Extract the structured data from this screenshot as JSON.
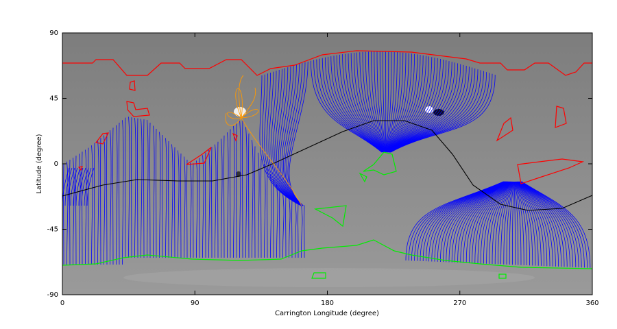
{
  "chart_data": {
    "type": "image",
    "xlabel": "Carrington Longitude (degree)",
    "ylabel": "Latitude (degree)",
    "xlim": [
      0,
      360
    ],
    "ylim": [
      -90,
      90
    ],
    "xticks": [
      0,
      90,
      180,
      270,
      360
    ],
    "yticks": [
      -90,
      -45,
      0,
      45,
      90
    ]
  }
}
